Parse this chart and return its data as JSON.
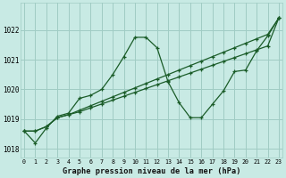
{
  "xlabel": "Graphe pression niveau de la mer (hPa)",
  "background_color": "#c8eae4",
  "grid_color": "#a0ccc4",
  "line_color": "#1a5c28",
  "ylim": [
    1017.7,
    1022.9
  ],
  "xlim": [
    -0.3,
    23.3
  ],
  "yticks": [
    1018,
    1019,
    1020,
    1021,
    1022
  ],
  "xticks": [
    0,
    1,
    2,
    3,
    4,
    5,
    6,
    7,
    8,
    9,
    10,
    11,
    12,
    13,
    14,
    15,
    16,
    17,
    18,
    19,
    20,
    21,
    22,
    23
  ],
  "series1_x": [
    0,
    1,
    2,
    3,
    4,
    5,
    6,
    7,
    8,
    9,
    10,
    11,
    12,
    13,
    14,
    15,
    16,
    17,
    18,
    19,
    20,
    21,
    22,
    23
  ],
  "series1_y": [
    1018.6,
    1018.2,
    1018.7,
    1019.1,
    1019.2,
    1019.7,
    1019.8,
    1020.0,
    1020.5,
    1021.1,
    1021.75,
    1021.75,
    1021.4,
    1020.25,
    1019.55,
    1019.05,
    1019.05,
    1019.5,
    1019.95,
    1020.6,
    1020.65,
    1021.3,
    1021.8,
    1022.4
  ],
  "series2_x": [
    0,
    1,
    2,
    3,
    4,
    5,
    6,
    7,
    8,
    9,
    10,
    11,
    12,
    13,
    14,
    15,
    16,
    17,
    18,
    19,
    20,
    21,
    22,
    23
  ],
  "series2_y": [
    1018.6,
    1018.6,
    1018.75,
    1019.05,
    1019.15,
    1019.3,
    1019.45,
    1019.6,
    1019.75,
    1019.9,
    1020.05,
    1020.2,
    1020.35,
    1020.5,
    1020.65,
    1020.8,
    1020.95,
    1021.1,
    1021.25,
    1021.4,
    1021.55,
    1021.7,
    1021.85,
    1022.4
  ],
  "series3_x": [
    0,
    1,
    2,
    3,
    4,
    5,
    6,
    7,
    8,
    9,
    10,
    11,
    12,
    13,
    14,
    15,
    16,
    17,
    18,
    19,
    20,
    21,
    22,
    23
  ],
  "series3_y": [
    1018.6,
    1018.6,
    1018.75,
    1019.05,
    1019.15,
    1019.25,
    1019.38,
    1019.51,
    1019.64,
    1019.77,
    1019.9,
    1020.03,
    1020.16,
    1020.29,
    1020.42,
    1020.55,
    1020.68,
    1020.81,
    1020.94,
    1021.07,
    1021.2,
    1021.33,
    1021.46,
    1022.4
  ]
}
